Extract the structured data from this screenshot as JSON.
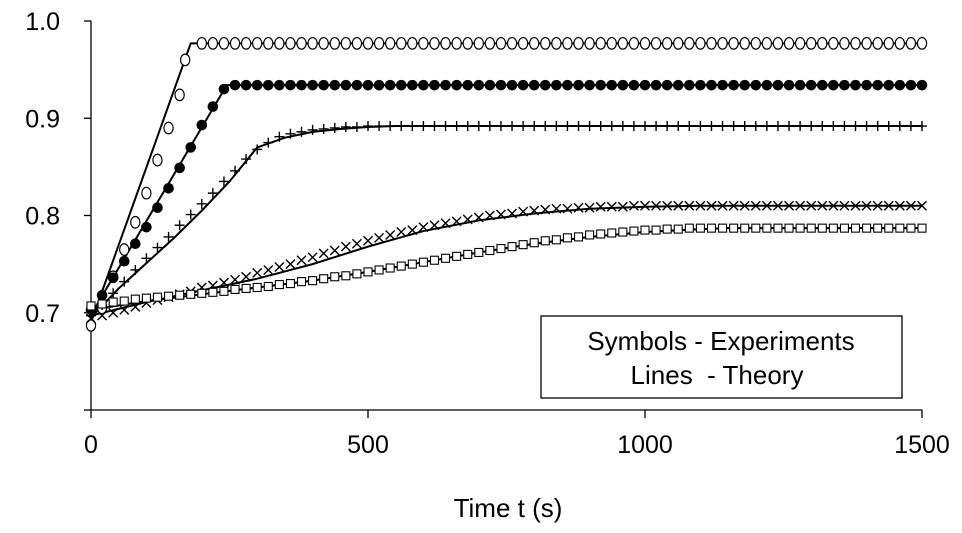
{
  "chart_data": {
    "type": "scatter",
    "title": "",
    "xlabel": "Time t (s)",
    "ylabel": "",
    "xlim": [
      0,
      1500
    ],
    "ylim": [
      0.6,
      1.0
    ],
    "x_ticks": [
      0,
      500,
      1000,
      1500
    ],
    "x_tick_labels": [
      "0",
      "500",
      "1000",
      "1500"
    ],
    "y_ticks": [
      0.6,
      0.7,
      0.8,
      0.9,
      1.0
    ],
    "y_tick_labels": [
      "",
      "0.7",
      "0.8",
      "0.9",
      "1.0"
    ],
    "grid": false,
    "legend": {
      "position": "bottom-right",
      "lines": [
        "Symbols - Experiments",
        "Lines  - Theory"
      ]
    },
    "series": [
      {
        "marker": "open-circle",
        "experiment": {
          "x": [
            0,
            20,
            40,
            60,
            80,
            100,
            120,
            140,
            160,
            170,
            200,
            220,
            240,
            260,
            280,
            300,
            320,
            340,
            360,
            380,
            400,
            420,
            440,
            460,
            480,
            500,
            520,
            540,
            560,
            580,
            600,
            620,
            640,
            660,
            680,
            700,
            720,
            740,
            760,
            780,
            800,
            820,
            840,
            860,
            880,
            900,
            920,
            940,
            960,
            980,
            1000,
            1020,
            1040,
            1060,
            1080,
            1100,
            1120,
            1140,
            1160,
            1180,
            1200,
            1220,
            1240,
            1260,
            1280,
            1300,
            1320,
            1340,
            1360,
            1380,
            1400,
            1420,
            1440,
            1460,
            1480,
            1500
          ],
          "y": [
            0.687,
            0.705,
            0.737,
            0.765,
            0.793,
            0.823,
            0.857,
            0.89,
            0.924,
            0.96,
            0.977,
            0.977,
            0.977,
            0.977,
            0.977,
            0.977,
            0.977,
            0.977,
            0.977,
            0.977,
            0.977,
            0.977,
            0.977,
            0.977,
            0.977,
            0.977,
            0.977,
            0.977,
            0.977,
            0.977,
            0.977,
            0.977,
            0.977,
            0.977,
            0.977,
            0.977,
            0.977,
            0.977,
            0.977,
            0.977,
            0.977,
            0.977,
            0.977,
            0.977,
            0.977,
            0.977,
            0.977,
            0.977,
            0.977,
            0.977,
            0.977,
            0.977,
            0.977,
            0.977,
            0.977,
            0.977,
            0.977,
            0.977,
            0.977,
            0.977,
            0.977,
            0.977,
            0.977,
            0.977,
            0.977,
            0.977,
            0.977,
            0.977,
            0.977,
            0.977,
            0.977,
            0.977,
            0.977,
            0.977,
            0.977,
            0.977
          ]
        },
        "theory": {
          "x": [
            0,
            180,
            1500
          ],
          "y": [
            0.69,
            0.977,
            0.977
          ]
        }
      },
      {
        "marker": "filled-circle",
        "experiment": {
          "x": [
            0,
            20,
            40,
            60,
            80,
            100,
            120,
            140,
            160,
            180,
            200,
            220,
            240,
            260,
            280,
            300,
            320,
            340,
            360,
            380,
            400,
            420,
            440,
            460,
            480,
            500,
            520,
            540,
            560,
            580,
            600,
            620,
            640,
            660,
            680,
            700,
            720,
            740,
            760,
            780,
            800,
            820,
            840,
            860,
            880,
            900,
            920,
            940,
            960,
            980,
            1000,
            1020,
            1040,
            1060,
            1080,
            1100,
            1120,
            1140,
            1160,
            1180,
            1200,
            1220,
            1240,
            1260,
            1280,
            1300,
            1320,
            1340,
            1360,
            1380,
            1400,
            1420,
            1440,
            1460,
            1480,
            1500
          ],
          "y": [
            0.703,
            0.718,
            0.736,
            0.753,
            0.771,
            0.788,
            0.808,
            0.828,
            0.849,
            0.87,
            0.893,
            0.912,
            0.93,
            0.934,
            0.934,
            0.934,
            0.934,
            0.934,
            0.934,
            0.934,
            0.934,
            0.934,
            0.934,
            0.934,
            0.934,
            0.934,
            0.934,
            0.934,
            0.934,
            0.934,
            0.934,
            0.934,
            0.934,
            0.934,
            0.934,
            0.934,
            0.934,
            0.934,
            0.934,
            0.934,
            0.934,
            0.934,
            0.934,
            0.934,
            0.934,
            0.934,
            0.934,
            0.934,
            0.934,
            0.934,
            0.934,
            0.934,
            0.934,
            0.934,
            0.934,
            0.934,
            0.934,
            0.934,
            0.934,
            0.934,
            0.934,
            0.934,
            0.934,
            0.934,
            0.934,
            0.934,
            0.934,
            0.934,
            0.934,
            0.934,
            0.934,
            0.934,
            0.934,
            0.934,
            0.934,
            0.934
          ]
        },
        "theory": {
          "x": [
            0,
            245,
            1500
          ],
          "y": [
            0.698,
            0.934,
            0.934
          ]
        }
      },
      {
        "marker": "plus",
        "experiment": {
          "x": [
            0,
            20,
            40,
            60,
            80,
            100,
            120,
            140,
            160,
            180,
            200,
            220,
            240,
            260,
            280,
            300,
            320,
            340,
            360,
            380,
            400,
            420,
            440,
            460,
            480,
            500,
            520,
            540,
            560,
            580,
            600,
            620,
            640,
            660,
            680,
            700,
            720,
            740,
            760,
            780,
            800,
            820,
            840,
            860,
            880,
            900,
            920,
            940,
            960,
            980,
            1000,
            1020,
            1040,
            1060,
            1080,
            1100,
            1120,
            1140,
            1160,
            1180,
            1200,
            1220,
            1240,
            1260,
            1280,
            1300,
            1320,
            1340,
            1360,
            1380,
            1400,
            1420,
            1440,
            1460,
            1480,
            1500
          ],
          "y": [
            0.697,
            0.708,
            0.72,
            0.732,
            0.744,
            0.756,
            0.767,
            0.778,
            0.79,
            0.801,
            0.812,
            0.823,
            0.835,
            0.846,
            0.858,
            0.868,
            0.875,
            0.881,
            0.884,
            0.886,
            0.888,
            0.889,
            0.89,
            0.891,
            0.891,
            0.892,
            0.892,
            0.892,
            0.892,
            0.892,
            0.892,
            0.892,
            0.892,
            0.892,
            0.892,
            0.892,
            0.892,
            0.892,
            0.892,
            0.892,
            0.892,
            0.892,
            0.892,
            0.892,
            0.892,
            0.892,
            0.892,
            0.892,
            0.892,
            0.892,
            0.892,
            0.892,
            0.892,
            0.892,
            0.892,
            0.892,
            0.892,
            0.892,
            0.892,
            0.892,
            0.892,
            0.892,
            0.892,
            0.892,
            0.892,
            0.892,
            0.892,
            0.892,
            0.892,
            0.892,
            0.892,
            0.892,
            0.892,
            0.892,
            0.892,
            0.892
          ]
        },
        "theory": {
          "x": [
            0,
            50,
            100,
            150,
            200,
            250,
            300,
            350,
            400,
            450,
            500,
            550,
            600,
            700,
            1500
          ],
          "y": [
            0.695,
            0.725,
            0.751,
            0.777,
            0.805,
            0.835,
            0.87,
            0.88,
            0.886,
            0.889,
            0.891,
            0.892,
            0.892,
            0.892,
            0.892
          ]
        }
      },
      {
        "marker": "cross",
        "experiment": {
          "x": [
            0,
            20,
            40,
            60,
            80,
            100,
            120,
            140,
            160,
            180,
            200,
            220,
            240,
            260,
            280,
            300,
            320,
            340,
            360,
            380,
            400,
            420,
            440,
            460,
            480,
            500,
            520,
            540,
            560,
            580,
            600,
            620,
            640,
            660,
            680,
            700,
            720,
            740,
            760,
            780,
            800,
            820,
            840,
            860,
            880,
            900,
            920,
            940,
            960,
            980,
            1000,
            1020,
            1040,
            1060,
            1080,
            1100,
            1120,
            1140,
            1160,
            1180,
            1200,
            1220,
            1240,
            1260,
            1280,
            1300,
            1320,
            1340,
            1360,
            1380,
            1400,
            1420,
            1440,
            1460,
            1480,
            1500
          ],
          "y": [
            0.694,
            0.697,
            0.7,
            0.703,
            0.706,
            0.71,
            0.713,
            0.716,
            0.719,
            0.722,
            0.726,
            0.728,
            0.731,
            0.734,
            0.737,
            0.741,
            0.744,
            0.747,
            0.75,
            0.754,
            0.757,
            0.761,
            0.764,
            0.768,
            0.771,
            0.774,
            0.777,
            0.78,
            0.783,
            0.785,
            0.788,
            0.79,
            0.792,
            0.794,
            0.796,
            0.798,
            0.8,
            0.801,
            0.802,
            0.804,
            0.805,
            0.806,
            0.807,
            0.807,
            0.808,
            0.808,
            0.809,
            0.809,
            0.809,
            0.81,
            0.81,
            0.81,
            0.81,
            0.81,
            0.81,
            0.81,
            0.81,
            0.81,
            0.81,
            0.81,
            0.81,
            0.81,
            0.81,
            0.81,
            0.81,
            0.81,
            0.81,
            0.81,
            0.81,
            0.81,
            0.81,
            0.81,
            0.81,
            0.81,
            0.81,
            0.81
          ]
        },
        "theory": {
          "x": [
            0,
            100,
            200,
            300,
            400,
            500,
            600,
            700,
            800,
            900,
            1000,
            1100,
            1200,
            1500
          ],
          "y": [
            0.697,
            0.711,
            0.723,
            0.735,
            0.75,
            0.768,
            0.784,
            0.795,
            0.802,
            0.807,
            0.809,
            0.81,
            0.81,
            0.81
          ]
        }
      },
      {
        "marker": "open-square",
        "experiment": {
          "x": [
            0,
            20,
            40,
            60,
            80,
            100,
            120,
            140,
            160,
            180,
            200,
            220,
            240,
            260,
            280,
            300,
            320,
            340,
            360,
            380,
            400,
            420,
            440,
            460,
            480,
            500,
            520,
            540,
            560,
            580,
            600,
            620,
            640,
            660,
            680,
            700,
            720,
            740,
            760,
            780,
            800,
            820,
            840,
            860,
            880,
            900,
            920,
            940,
            960,
            980,
            1000,
            1020,
            1040,
            1060,
            1080,
            1100,
            1120,
            1140,
            1160,
            1180,
            1200,
            1220,
            1240,
            1260,
            1280,
            1300,
            1320,
            1340,
            1360,
            1380,
            1400,
            1420,
            1440,
            1460,
            1480,
            1500
          ],
          "y": [
            0.707,
            0.709,
            0.711,
            0.712,
            0.714,
            0.715,
            0.716,
            0.717,
            0.718,
            0.719,
            0.72,
            0.721,
            0.722,
            0.724,
            0.725,
            0.726,
            0.727,
            0.729,
            0.73,
            0.732,
            0.733,
            0.735,
            0.737,
            0.738,
            0.74,
            0.742,
            0.744,
            0.746,
            0.748,
            0.75,
            0.752,
            0.754,
            0.756,
            0.758,
            0.76,
            0.762,
            0.764,
            0.766,
            0.768,
            0.77,
            0.772,
            0.774,
            0.775,
            0.777,
            0.778,
            0.78,
            0.781,
            0.782,
            0.783,
            0.784,
            0.785,
            0.785,
            0.786,
            0.786,
            0.787,
            0.787,
            0.787,
            0.787,
            0.787,
            0.787,
            0.787,
            0.787,
            0.787,
            0.787,
            0.787,
            0.787,
            0.787,
            0.787,
            0.787,
            0.787,
            0.787,
            0.787,
            0.787,
            0.787,
            0.787,
            0.787
          ]
        },
        "theory": {
          "x": [
            0,
            100,
            200,
            300,
            400,
            500,
            600,
            700,
            800,
            900,
            1000,
            1100,
            1150,
            1500
          ],
          "y": [
            0.703,
            0.712,
            0.719,
            0.726,
            0.733,
            0.742,
            0.752,
            0.762,
            0.771,
            0.778,
            0.783,
            0.786,
            0.787,
            0.787
          ]
        }
      }
    ]
  }
}
